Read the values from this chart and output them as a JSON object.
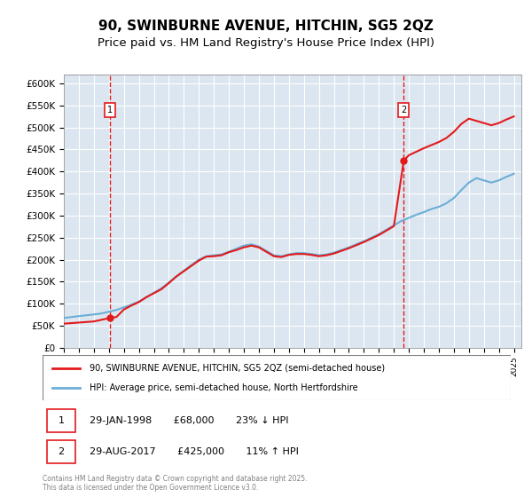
{
  "title": "90, SWINBURNE AVENUE, HITCHIN, SG5 2QZ",
  "subtitle": "Price paid vs. HM Land Registry's House Price Index (HPI)",
  "title_fontsize": 11,
  "subtitle_fontsize": 9.5,
  "background_color": "#dce6f0",
  "plot_bg_color": "#dce6f0",
  "ylim": [
    0,
    620000
  ],
  "yticks": [
    0,
    50000,
    100000,
    150000,
    200000,
    250000,
    300000,
    350000,
    400000,
    450000,
    500000,
    550000,
    600000
  ],
  "xlim_start": 1995,
  "xlim_end": 2025.5,
  "transaction1_date": 1998.08,
  "transaction1_price": 68000,
  "transaction2_date": 2017.66,
  "transaction2_price": 425000,
  "hpi_color": "#6baed6",
  "price_color": "#e31a1c",
  "vline_color": "#e31a1c",
  "legend_label_price": "90, SWINBURNE AVENUE, HITCHIN, SG5 2QZ (semi-detached house)",
  "legend_label_hpi": "HPI: Average price, semi-detached house, North Hertfordshire",
  "annotation1_label": "1",
  "annotation1_text": "29-JAN-1998       £68,000       23% ↓ HPI",
  "annotation2_label": "2",
  "annotation2_text": "29-AUG-2017       £425,000       11% ↑ HPI",
  "footnote": "Contains HM Land Registry data © Crown copyright and database right 2025.\nThis data is licensed under the Open Government Licence v3.0.",
  "hpi_data_years": [
    1995,
    1995.5,
    1996,
    1996.5,
    1997,
    1997.5,
    1998,
    1998.5,
    1999,
    1999.5,
    2000,
    2000.5,
    2001,
    2001.5,
    2002,
    2002.5,
    2003,
    2003.5,
    2004,
    2004.5,
    2005,
    2005.5,
    2006,
    2006.5,
    2007,
    2007.5,
    2008,
    2008.5,
    2009,
    2009.5,
    2010,
    2010.5,
    2011,
    2011.5,
    2012,
    2012.5,
    2013,
    2013.5,
    2014,
    2014.5,
    2015,
    2015.5,
    2016,
    2016.5,
    2017,
    2017.5,
    2018,
    2018.5,
    2019,
    2019.5,
    2020,
    2020.5,
    2021,
    2021.5,
    2022,
    2022.5,
    2023,
    2023.5,
    2024,
    2024.5,
    2025
  ],
  "hpi_values": [
    68000,
    70000,
    72000,
    74000,
    76000,
    78000,
    82000,
    86000,
    92000,
    98000,
    105000,
    115000,
    125000,
    135000,
    148000,
    162000,
    175000,
    188000,
    200000,
    208000,
    210000,
    212000,
    218000,
    225000,
    232000,
    235000,
    230000,
    220000,
    210000,
    208000,
    212000,
    215000,
    215000,
    213000,
    210000,
    212000,
    216000,
    222000,
    228000,
    235000,
    242000,
    250000,
    258000,
    268000,
    278000,
    288000,
    295000,
    302000,
    308000,
    315000,
    320000,
    328000,
    340000,
    358000,
    375000,
    385000,
    380000,
    375000,
    380000,
    388000,
    395000
  ],
  "price_data_years": [
    1995.0,
    1997.0,
    1998.08,
    1998.5,
    1999.0,
    1999.5,
    2000.0,
    2000.5,
    2001.0,
    2001.5,
    2002.0,
    2002.5,
    2003.0,
    2003.5,
    2004.0,
    2004.5,
    2005.0,
    2005.5,
    2006.0,
    2006.5,
    2007.0,
    2007.5,
    2008.0,
    2008.5,
    2009.0,
    2009.5,
    2010.0,
    2010.5,
    2011.0,
    2011.5,
    2012.0,
    2012.5,
    2013.0,
    2013.5,
    2014.0,
    2014.5,
    2015.0,
    2015.5,
    2016.0,
    2016.5,
    2017.0,
    2017.66,
    2018.0,
    2018.5,
    2019.0,
    2019.5,
    2020.0,
    2020.5,
    2021.0,
    2021.5,
    2022.0,
    2022.5,
    2023.0,
    2023.5,
    2024.0,
    2024.5,
    2025.0
  ],
  "price_values": [
    55000,
    60000,
    68000,
    70000,
    87000,
    96000,
    104000,
    115000,
    124000,
    133000,
    147000,
    162000,
    174000,
    186000,
    198000,
    207000,
    208000,
    210000,
    217000,
    222000,
    228000,
    232000,
    228000,
    218000,
    208000,
    206000,
    211000,
    213000,
    213000,
    211000,
    208000,
    210000,
    214000,
    220000,
    226000,
    233000,
    240000,
    248000,
    256000,
    266000,
    276000,
    425000,
    437000,
    445000,
    453000,
    460000,
    467000,
    476000,
    490000,
    508000,
    520000,
    515000,
    510000,
    505000,
    510000,
    518000,
    525000
  ]
}
